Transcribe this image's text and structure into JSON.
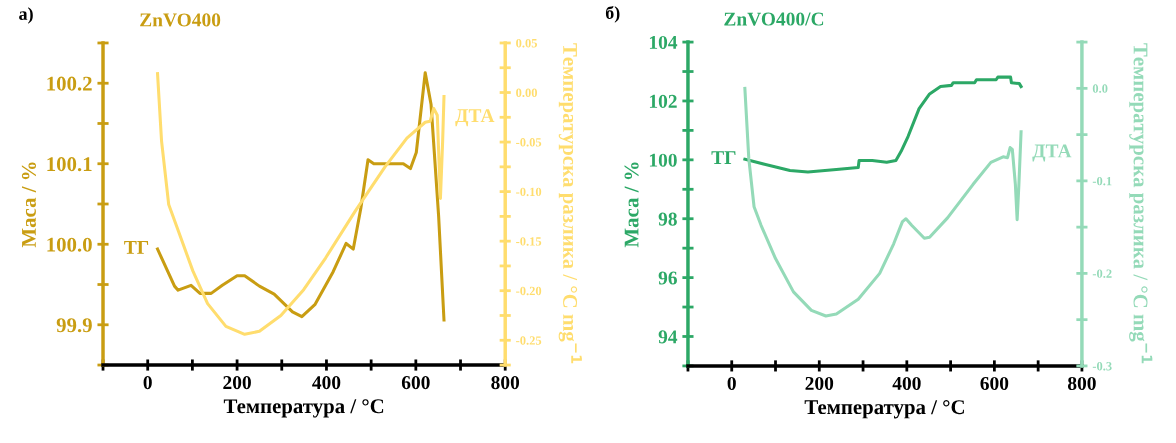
{
  "chart_data": [
    {
      "type": "line",
      "title": "ZnVO400",
      "xlabel": "Температура / °C",
      "ylabel": "Маса / %",
      "y2label": "Температурска разлика / °C mg$^{−1}$",
      "annotations": [
        "а)"
      ],
      "xlim": [
        -100,
        800
      ],
      "xticks": [
        {
          "value": -100,
          "label": null
        },
        0,
        {
          "value": 100,
          "label": null
        },
        200,
        {
          "value": 300,
          "label": null
        },
        400,
        {
          "value": 500,
          "label": null
        },
        600,
        {
          "value": 700,
          "label": null
        },
        800
      ],
      "ylim": [
        99.85,
        100.25
      ],
      "yticks": [
        {
          "value": 99.85,
          "label": null
        },
        99.9,
        {
          "value": 99.95,
          "label": null
        },
        {
          "value": 100.0,
          "label": "100.0"
        },
        {
          "value": 100.05,
          "label": null
        },
        100.1,
        {
          "value": 100.15,
          "label": null
        },
        100.2,
        {
          "value": 100.25,
          "label": null
        }
      ],
      "y2lim": [
        -0.275,
        0.05
      ],
      "y2ticks": [
        {
          "value": -0.275,
          "label": null
        },
        {
          "value": -0.25,
          "label": "-0.25"
        },
        {
          "value": -0.225,
          "label": null
        },
        {
          "value": -0.2,
          "label": "-0.20"
        },
        {
          "value": -0.175,
          "label": null
        },
        {
          "value": -0.15,
          "label": "-0.15"
        },
        {
          "value": -0.125,
          "label": null
        },
        {
          "value": -0.1,
          "label": "-0.10"
        },
        {
          "value": -0.075,
          "label": null
        },
        {
          "value": -0.05,
          "label": "-0.05"
        },
        {
          "value": -0.025,
          "label": null
        },
        {
          "value": 0.0,
          "label": "0.00"
        },
        {
          "value": 0.025,
          "label": null
        },
        {
          "value": 0.05,
          "label": "0.05"
        }
      ],
      "series": [
        {
          "name": "ТГ",
          "color": "#c99d12",
          "x": [
            22,
            60,
            68,
            97,
            117,
            142,
            167,
            200,
            217,
            250,
            283,
            324,
            345,
            374,
            415,
            444,
            460,
            477,
            493,
            506,
            572,
            588,
            601,
            621,
            634,
            651,
            663
          ],
          "values": [
            99.994,
            99.948,
            99.943,
            99.949,
            99.939,
            99.939,
            99.949,
            99.961,
            99.961,
            99.948,
            99.938,
            99.916,
            99.91,
            99.925,
            99.966,
            100.001,
            99.994,
            100.045,
            100.105,
            100.1,
            100.1,
            100.094,
            100.114,
            100.213,
            100.174,
            100.035,
            99.906
          ]
        },
        {
          "name": "ДТА",
          "color": "#ffdd6e",
          "axis": "y2",
          "x": [
            22,
            31,
            47,
            68,
            101,
            134,
            175,
            217,
            250,
            298,
            349,
            398,
            464,
            531,
            580,
            621,
            632,
            640,
            648,
            655,
            660,
            663
          ],
          "values": [
            0.019,
            -0.049,
            -0.113,
            -0.139,
            -0.18,
            -0.213,
            -0.236,
            -0.244,
            -0.241,
            -0.225,
            -0.199,
            -0.167,
            -0.12,
            -0.075,
            -0.046,
            -0.03,
            -0.029,
            -0.016,
            -0.023,
            -0.107,
            -0.049,
            -0.004
          ]
        }
      ]
    },
    {
      "type": "line",
      "title": "ZnVO400/C",
      "xlabel": "Температура / °C",
      "ylabel": "Маса / %",
      "y2label": "Температурска разлика / °C mg$^{−1}$",
      "annotations": [
        "б)"
      ],
      "xlim": [
        -100,
        800
      ],
      "xticks": [
        {
          "value": -100,
          "label": null
        },
        0,
        {
          "value": 100,
          "label": null
        },
        200,
        {
          "value": 300,
          "label": null
        },
        400,
        {
          "value": 500,
          "label": null
        },
        600,
        {
          "value": 700,
          "label": null
        },
        800
      ],
      "ylim": [
        93,
        104
      ],
      "yticks": [
        {
          "value": 93,
          "label": null
        },
        94,
        {
          "value": 95,
          "label": null
        },
        96,
        {
          "value": 97,
          "label": null
        },
        98,
        {
          "value": 99,
          "label": null
        },
        100,
        {
          "value": 101,
          "label": null
        },
        102,
        {
          "value": 103,
          "label": null
        },
        104
      ],
      "y2lim": [
        -0.3,
        0.05
      ],
      "y2ticks": [
        {
          "value": -0.3,
          "label": "-0.3"
        },
        {
          "value": -0.25,
          "label": null
        },
        {
          "value": -0.2,
          "label": "-0.2"
        },
        {
          "value": -0.15,
          "label": null
        },
        {
          "value": -0.1,
          "label": "-0.1"
        },
        {
          "value": -0.05,
          "label": null
        },
        {
          "value": 0.0,
          "label": "0.0"
        },
        {
          "value": 0.05,
          "label": null
        }
      ],
      "series": [
        {
          "name": "ТГ",
          "color": "#2ca866",
          "x": [
            30,
            75,
            133,
            174,
            239,
            289,
            291,
            321,
            354,
            375,
            387,
            403,
            428,
            452,
            477,
            502,
            506,
            555,
            559,
            604,
            608,
            637,
            639,
            657,
            661
          ],
          "values": [
            100.02,
            99.85,
            99.64,
            99.59,
            99.67,
            99.74,
            99.98,
            99.98,
            99.92,
            99.98,
            100.29,
            100.8,
            101.74,
            102.24,
            102.49,
            102.53,
            102.62,
            102.62,
            102.72,
            102.72,
            102.81,
            102.81,
            102.62,
            102.59,
            102.49
          ]
        },
        {
          "name": "ДТА",
          "color": "#94dab8",
          "axis": "y2",
          "x": [
            30,
            39,
            51,
            67,
            100,
            141,
            182,
            215,
            239,
            289,
            338,
            370,
            390,
            398,
            411,
            440,
            452,
            493,
            551,
            592,
            620,
            630,
            636,
            641,
            648,
            652,
            656,
            661
          ],
          "values": [
            0.0,
            -0.076,
            -0.128,
            -0.148,
            -0.184,
            -0.22,
            -0.24,
            -0.246,
            -0.244,
            -0.228,
            -0.2,
            -0.168,
            -0.144,
            -0.141,
            -0.148,
            -0.162,
            -0.161,
            -0.14,
            -0.104,
            -0.08,
            -0.074,
            -0.075,
            -0.064,
            -0.066,
            -0.104,
            -0.142,
            -0.104,
            -0.047
          ]
        }
      ]
    }
  ]
}
